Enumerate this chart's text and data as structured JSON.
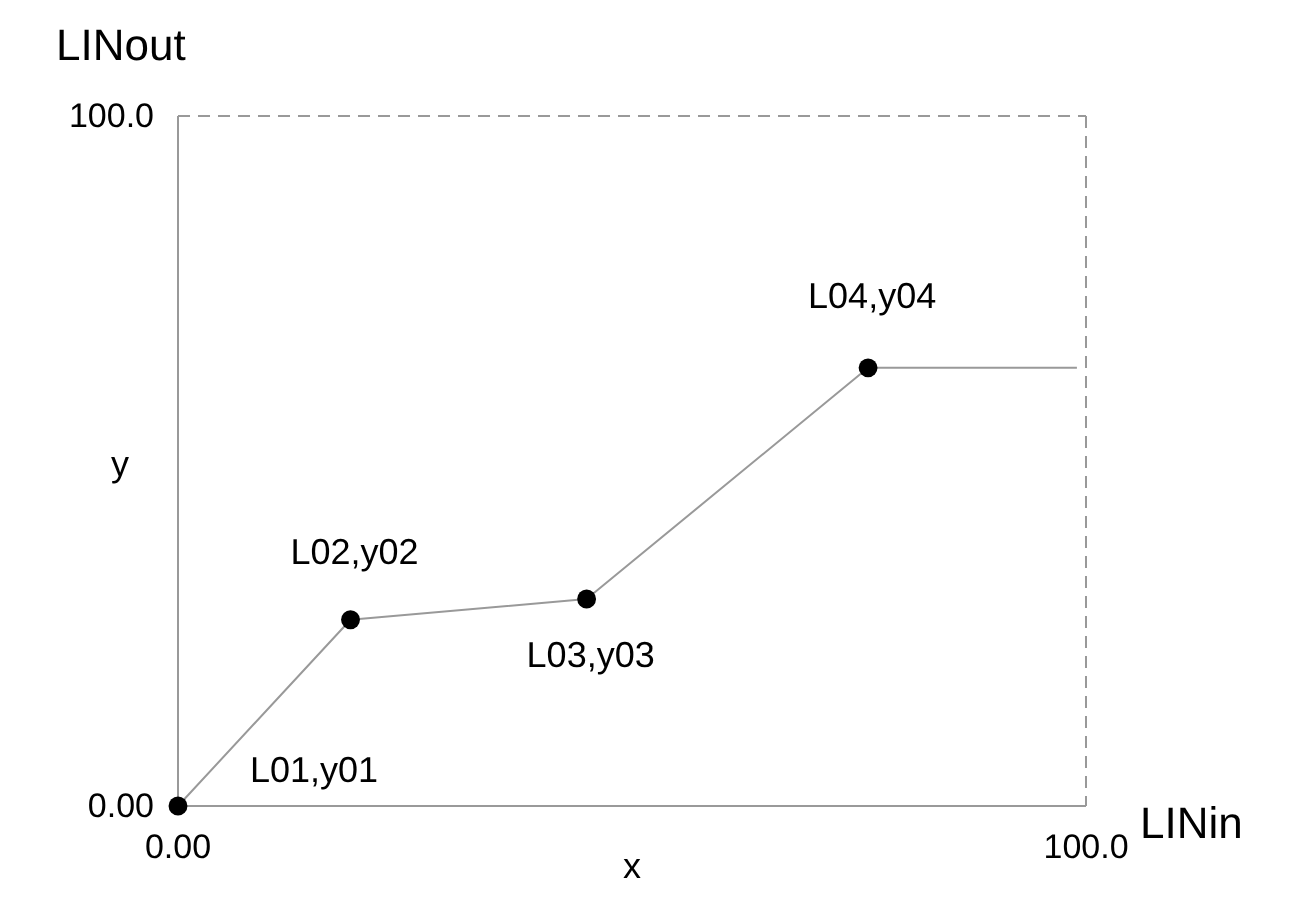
{
  "chart_data": {
    "type": "line",
    "xlabel": "LINin",
    "ylabel": "LINout",
    "xlim": [
      0,
      100
    ],
    "ylim": [
      0,
      100
    ],
    "xticks": [
      {
        "value": 0,
        "label": "0.00"
      },
      {
        "value": 100,
        "label": "100.0"
      }
    ],
    "yticks": [
      {
        "value": 0,
        "label": "0.00"
      },
      {
        "value": 100,
        "label": "100.0"
      }
    ],
    "grid": false,
    "series": [
      {
        "color": "#999999",
        "marker": "none",
        "x": [
          0,
          19,
          45,
          76,
          99
        ],
        "values": [
          0,
          27,
          30,
          63.5,
          63.5
        ]
      },
      {
        "type": "scatter",
        "color": "#000000",
        "marker": "circle",
        "x": [
          0,
          19,
          45,
          76
        ],
        "values": [
          0,
          27,
          30,
          63.5
        ]
      }
    ],
    "annotations": [
      {
        "text": "L01,y01",
        "x": 0,
        "y": 0
      },
      {
        "text": "L02,y02",
        "x": 19,
        "y": 27
      },
      {
        "text": "L03,y03",
        "x": 45,
        "y": 30
      },
      {
        "text": "L04,y04",
        "x": 76,
        "y": 63.5
      },
      "x",
      "y"
    ]
  }
}
